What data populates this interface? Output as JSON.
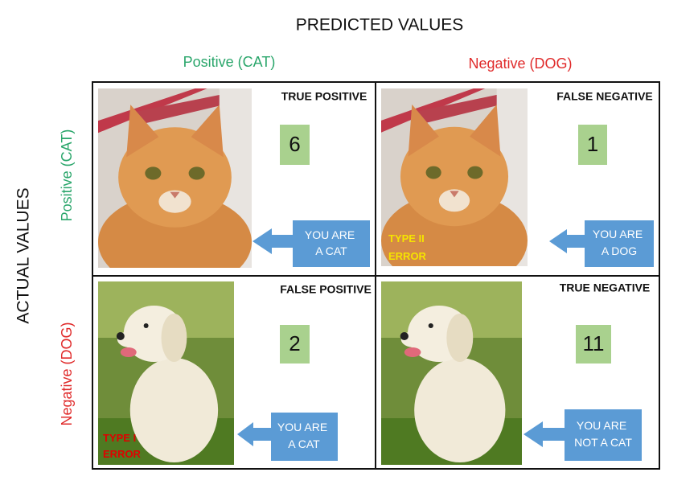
{
  "header": {
    "title": "PREDICTED VALUES"
  },
  "columns": [
    "Positive (CAT)",
    "Negative (DOG)"
  ],
  "rows_axis": {
    "title": "ACTUAL VALUES",
    "labels": [
      "Positive (CAT)",
      "Negative (DOG)"
    ]
  },
  "cells": [
    {
      "title": "TRUE POSITIVE",
      "count": "6",
      "callout": [
        "YOU ARE",
        "A CAT"
      ]
    },
    {
      "title": "FALSE NEGATIVE",
      "count": "1",
      "callout": [
        "YOU ARE",
        "A DOG"
      ],
      "error": [
        "TYPE II",
        "ERROR"
      ]
    },
    {
      "title": "FALSE POSITIVE",
      "count": "2",
      "callout": [
        "YOU ARE",
        "A CAT"
      ],
      "error": [
        "TYPE I",
        "ERROR"
      ]
    },
    {
      "title": "TRUE NEGATIVE",
      "count": "11",
      "callout": [
        "YOU ARE",
        "NOT A CAT"
      ]
    }
  ]
}
